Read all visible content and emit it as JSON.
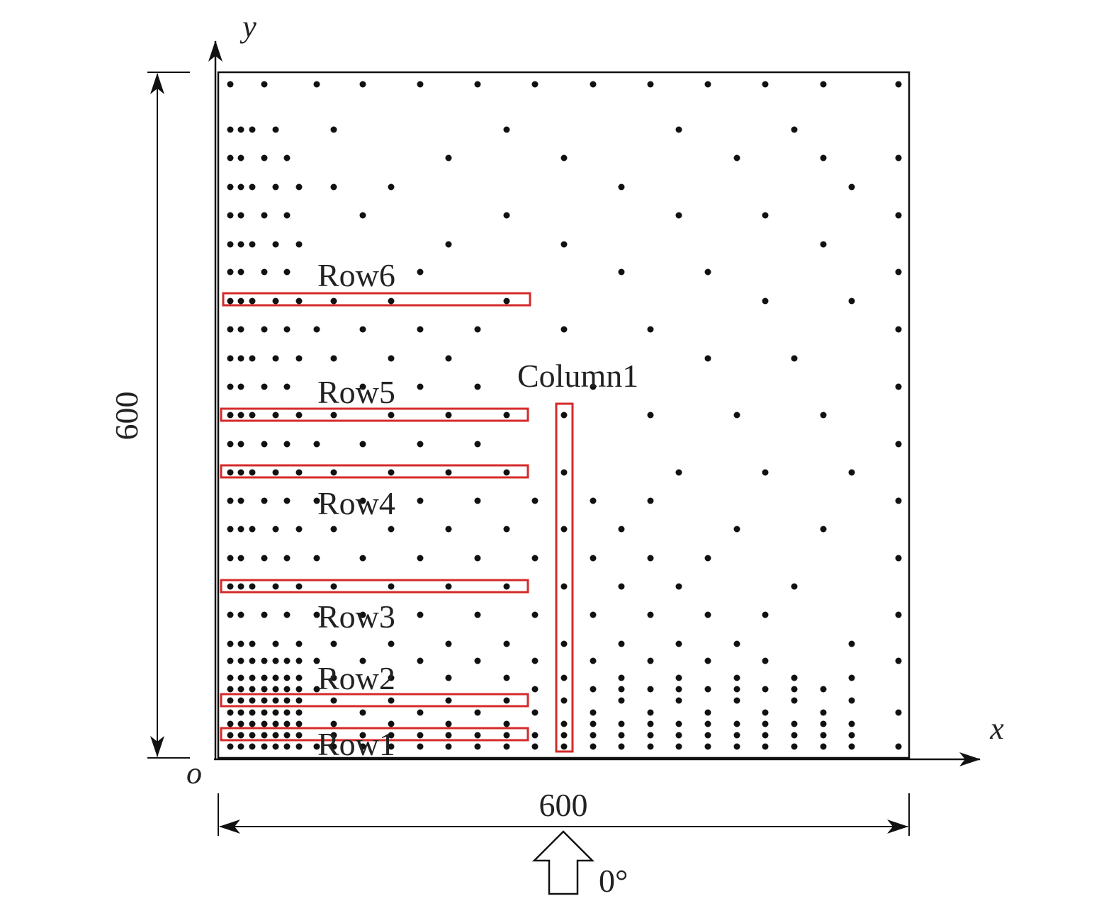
{
  "axes": {
    "y": "y",
    "x": "x",
    "origin": "o"
  },
  "dimensions": {
    "height": "600",
    "width": "600"
  },
  "rows": [
    "Row1",
    "Row2",
    "Row3",
    "Row4",
    "Row5",
    "Row6"
  ],
  "column": "Column1",
  "direction": "0°"
}
